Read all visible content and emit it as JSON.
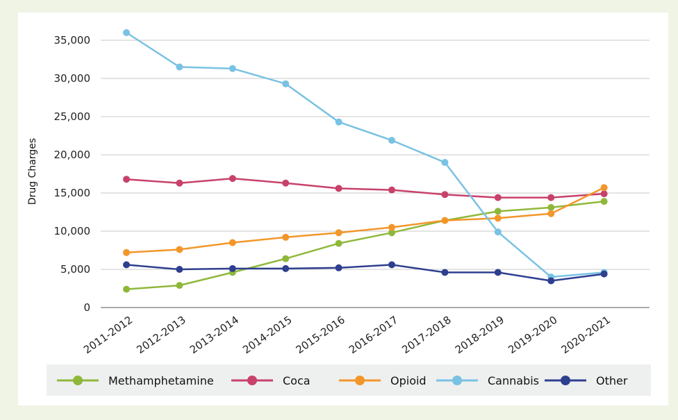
{
  "chart_data": {
    "type": "line",
    "title": "",
    "xlabel": "",
    "ylabel": "Drug Charges",
    "ylim": [
      0,
      35000
    ],
    "yticks": [
      0,
      5000,
      10000,
      15000,
      20000,
      25000,
      30000,
      35000
    ],
    "yticklabels": [
      "0",
      "5,000",
      "10,000",
      "15,000",
      "20,000",
      "25,000",
      "30,000",
      "35,000"
    ],
    "grid": "horizontal",
    "legend_position": "bottom",
    "categories": [
      "2011-2012",
      "2012-2013",
      "2013-2014",
      "2014-2015",
      "2015-2016",
      "2016-2017",
      "2017-2018",
      "2018-2019",
      "2019-2020",
      "2020-2021"
    ],
    "series": [
      {
        "name": "Methamphetamine",
        "color": "#8fb83a",
        "values": [
          2400,
          2900,
          4600,
          6400,
          8400,
          9800,
          11400,
          12600,
          13100,
          13900
        ]
      },
      {
        "name": "Coca",
        "color": "#c8416a",
        "values": [
          16800,
          16300,
          16900,
          16300,
          15600,
          15400,
          14800,
          14400,
          14400,
          14900
        ]
      },
      {
        "name": "Opioid",
        "color": "#f3962a",
        "values": [
          7200,
          7600,
          8500,
          9200,
          9800,
          10500,
          11400,
          11700,
          12300,
          15700
        ]
      },
      {
        "name": "Cannabis",
        "color": "#79c2e3",
        "values": [
          36000,
          31500,
          31300,
          29300,
          24300,
          21900,
          19000,
          9900,
          4000,
          4600
        ]
      },
      {
        "name": "Other",
        "color": "#2e3f8f",
        "values": [
          5600,
          5000,
          5100,
          5100,
          5200,
          5600,
          4600,
          4600,
          3500,
          4400
        ]
      }
    ]
  }
}
